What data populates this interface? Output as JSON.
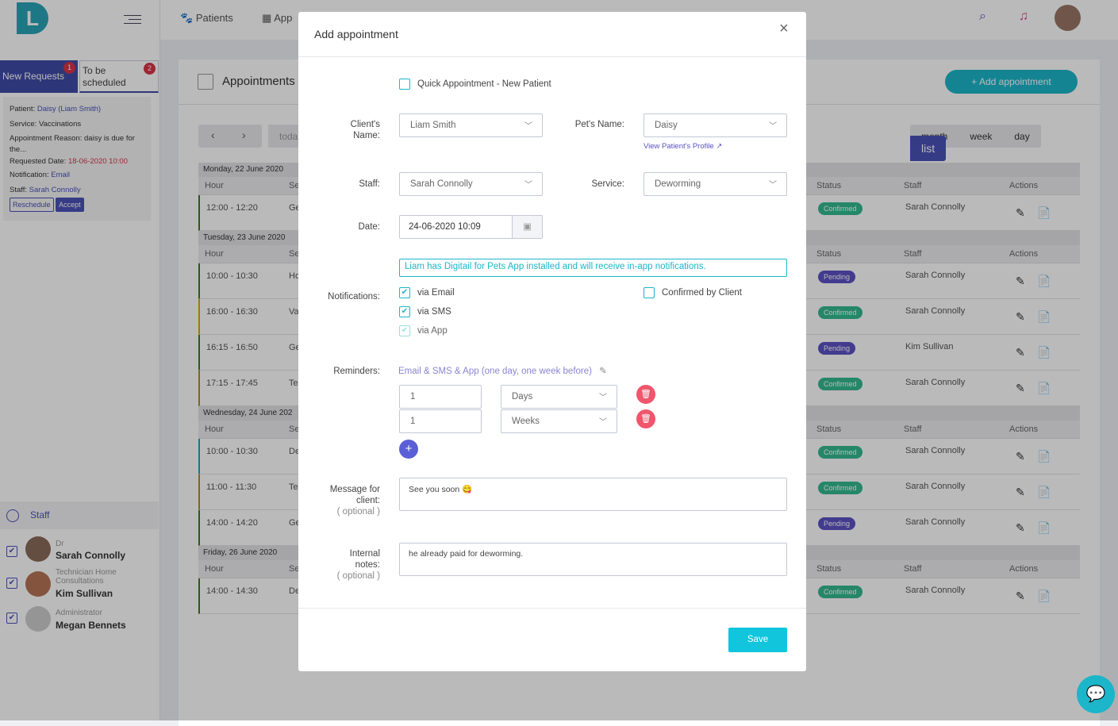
{
  "sidebar": {
    "logo_text": "L",
    "tabs": [
      {
        "label": "New Requests",
        "badge": "1"
      },
      {
        "label": "To be scheduled",
        "badge": "2"
      }
    ],
    "request": {
      "patient_label": "Patient:",
      "patient": "Daisy (Liam Smith)",
      "service_label": "Service:",
      "service": "Vaccinations",
      "reason_label": "Appointment Reason:",
      "reason": "daisy is due for the...",
      "date_label": "Requested Date:",
      "date": "18-06-2020 10:00",
      "notif_label": "Notification:",
      "notif": "Email",
      "staff_label": "Staff:",
      "staff": "Sarah Connolly",
      "reschedule": "Reschedule",
      "accept": "Accept"
    },
    "staff_title": "Staff",
    "staff": [
      {
        "role": "Dr",
        "name": "Sarah Connolly"
      },
      {
        "role": "Technician Home Consultations",
        "name": "Kim Sullivan"
      },
      {
        "role": "Administrator",
        "name": "Megan Bennets"
      }
    ]
  },
  "topbar": {
    "nav": [
      {
        "label": "Patients",
        "icon": "paw-icon"
      },
      {
        "label": "App",
        "icon": "calendar-icon"
      }
    ]
  },
  "main": {
    "title": "Appointments",
    "add_button": "+ Add appointment",
    "prev": "‹",
    "next": "›",
    "today": "toda",
    "views": [
      "month",
      "week",
      "day",
      "list"
    ],
    "active_view": "list",
    "columns": {
      "hour": "Hour",
      "service": "Se",
      "status": "Status",
      "staff": "Staff",
      "actions": "Actions"
    },
    "days": [
      {
        "label": "Monday, 22 June 2020",
        "rows": [
          {
            "hour": "12:00 - 12:20",
            "service": "Ge",
            "status": "Confirmed",
            "staff": "Sarah Connolly",
            "color": "#3c7b1c"
          }
        ]
      },
      {
        "label": "Tuesday, 23 June 2020",
        "rows": [
          {
            "hour": "10:00 - 10:30",
            "service": "Ho",
            "status": "Pending",
            "staff": "Sarah Connolly",
            "color": "#3c7b1c"
          },
          {
            "hour": "16:00 - 16:30",
            "service": "Va",
            "status": "Confirmed",
            "staff": "Sarah Connolly",
            "color": "#e0a400"
          },
          {
            "hour": "16:15 - 16:50",
            "service": "Ge",
            "status": "Pending",
            "staff": "Kim Sullivan",
            "color": "#3c7b1c"
          },
          {
            "hour": "17:15 - 17:45",
            "service": "Te",
            "status": "Confirmed",
            "staff": "Sarah Connolly",
            "color": "#ad8d22"
          }
        ]
      },
      {
        "label": "Wednesday, 24 June 202",
        "rows": [
          {
            "hour": "10:00 - 10:30",
            "service": "De",
            "status": "Confirmed",
            "staff": "Sarah Connolly",
            "color": "#12a8c0"
          },
          {
            "hour": "11:00 - 11:30",
            "service": "Te",
            "status": "Confirmed",
            "staff": "Sarah Connolly",
            "color": "#ad8d22"
          },
          {
            "hour": "14:00 - 14:20",
            "service": "Ge",
            "status": "Pending",
            "staff": "Sarah Connolly",
            "color": "#3c7b1c"
          }
        ]
      },
      {
        "label": "Friday, 26 June 2020",
        "rows": [
          {
            "hour": "14:00 - 14:30",
            "service": "De",
            "status": "Confirmed",
            "staff": "Sarah Connolly",
            "color": "#3c7b1c"
          }
        ]
      }
    ]
  },
  "modal": {
    "title": "Add appointment",
    "close": "×",
    "quick": "Quick Appointment - New Patient",
    "quick_checked": false,
    "client_label": "Client's Name:",
    "client": "Liam Smith",
    "pet_label": "Pet's Name:",
    "pet": "Daisy",
    "view_profile": "View Patient's Profile",
    "staff_label": "Staff:",
    "staff": "Sarah Connolly",
    "service_label": "Service:",
    "service": "Deworming",
    "date_label": "Date:",
    "date": "24-06-2020 10:09",
    "app_notice": "Liam has Digitail for Pets App installed and will receive in-app notifications.",
    "notif_label": "Notifications:",
    "via_email": "via Email",
    "via_sms": "via SMS",
    "via_app": "via App",
    "confirmed": "Confirmed by Client",
    "reminders_label": "Reminders:",
    "reminders_summary": "Email & SMS & App (one day, one week before)",
    "reminders": [
      {
        "value": "1",
        "unit": "Days"
      },
      {
        "value": "1",
        "unit": "Weeks"
      }
    ],
    "message_label": "Message for client:",
    "optional": "( optional )",
    "message": "See you soon 😋",
    "notes_label": "Internal notes:",
    "notes": "he already paid for deworming.",
    "save": "Save"
  },
  "colors": {
    "primary": "#4a51b8",
    "accent": "#1cb5c9",
    "danger": "#f0566c"
  }
}
